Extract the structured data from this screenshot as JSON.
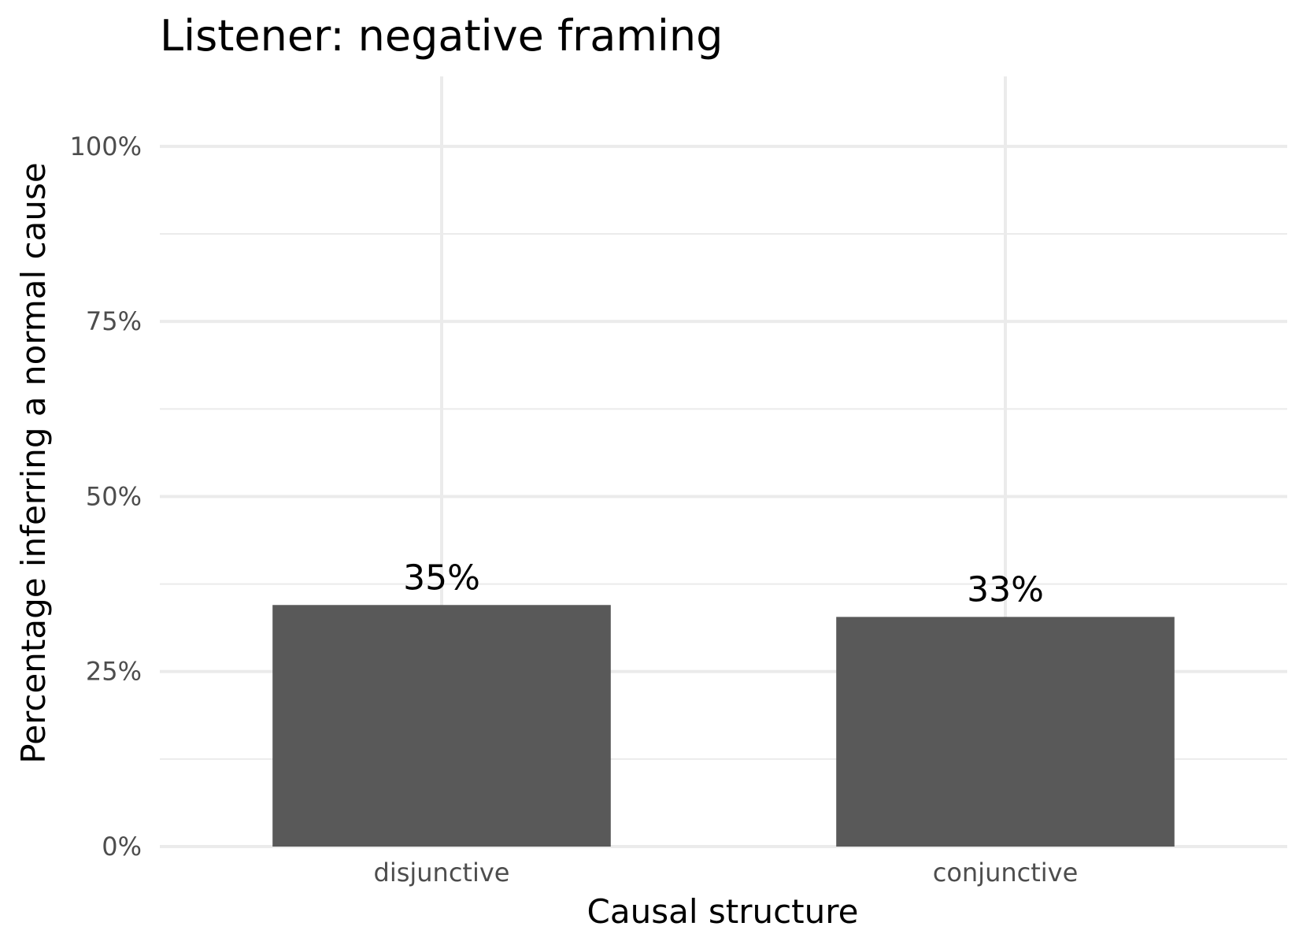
{
  "chart_data": {
    "type": "bar",
    "title": "Listener: negative framing",
    "xlabel": "Causal structure",
    "ylabel": "Percentage inferring a normal cause",
    "categories": [
      "disjunctive",
      "conjunctive"
    ],
    "values": [
      34.5,
      32.8
    ],
    "value_labels": [
      "35%",
      "33%"
    ],
    "ylim": [
      0,
      110
    ],
    "y_ticks": [
      0,
      25,
      50,
      75,
      100
    ],
    "y_tick_labels": [
      "0%",
      "25%",
      "50%",
      "75%",
      "100%"
    ],
    "y_minor_ticks": [
      12.5,
      37.5,
      62.5,
      87.5
    ],
    "grid": true,
    "legend": "none",
    "colors": {
      "bar": "#595959",
      "grid": "#ebebeb",
      "tick_text": "#4d4d4d",
      "text": "#000000"
    }
  }
}
